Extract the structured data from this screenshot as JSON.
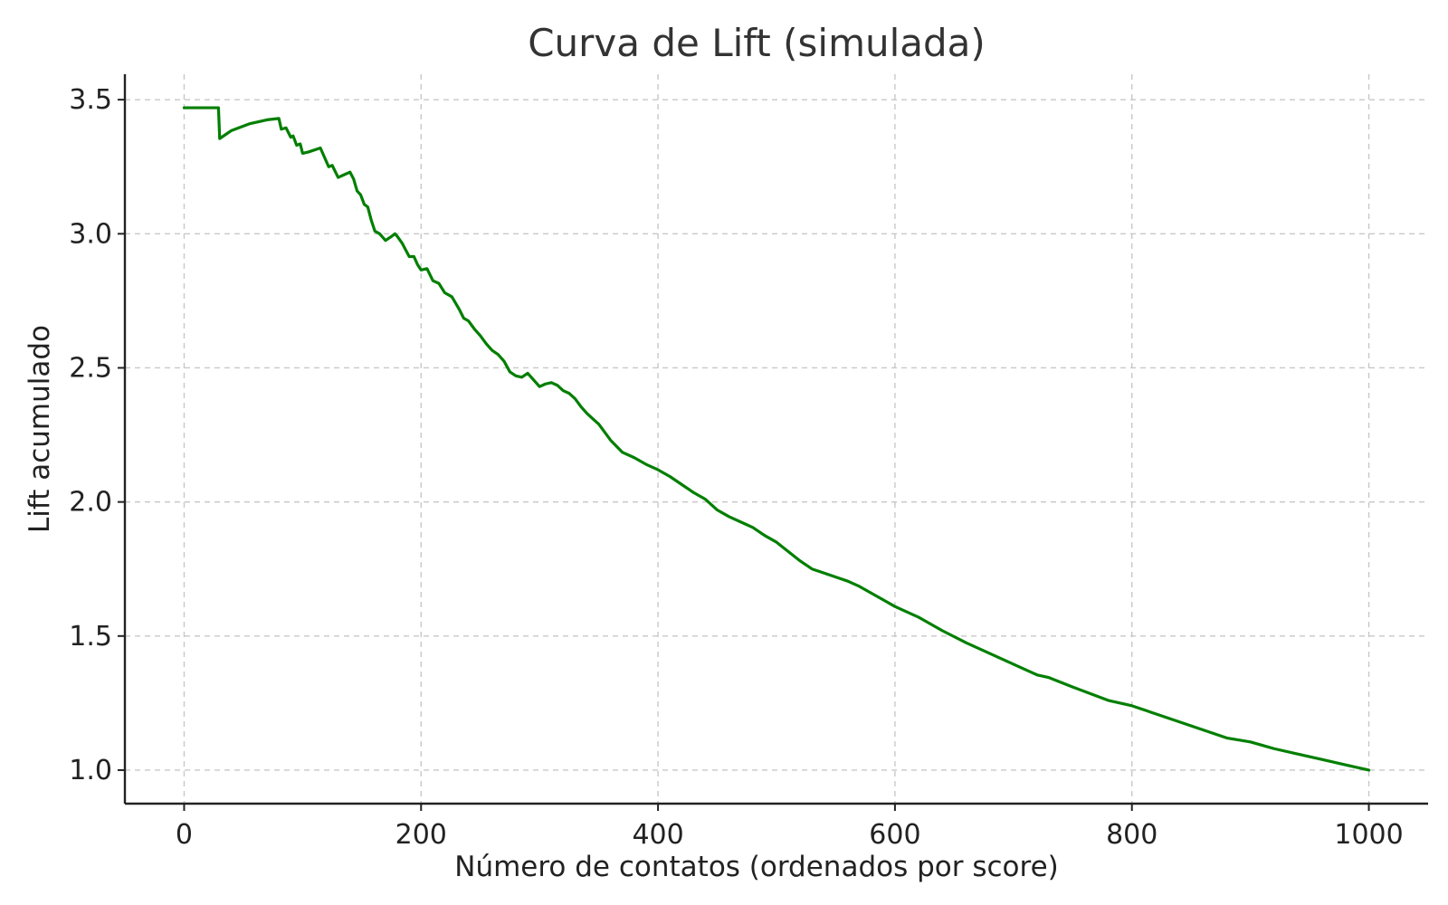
{
  "chart_data": {
    "type": "line",
    "title": "Curva de Lift (simulada)",
    "xlabel": "Número de contatos (ordenados por score)",
    "ylabel": "Lift acumulado",
    "xlim": [
      -50,
      1050
    ],
    "ylim": [
      0.875,
      3.595
    ],
    "xticks": [
      0,
      200,
      400,
      600,
      800,
      1000
    ],
    "yticks": [
      1.0,
      1.5,
      2.0,
      2.5,
      3.0,
      3.5
    ],
    "xtick_labels": [
      "0",
      "200",
      "400",
      "600",
      "800",
      "1000"
    ],
    "ytick_labels": [
      "1.0",
      "1.5",
      "2.0",
      "2.5",
      "3.0",
      "3.5"
    ],
    "grid": true,
    "legend": "none",
    "series": [
      {
        "color": "#007f00",
        "x": [
          0,
          10,
          20,
          29,
          30,
          40,
          55,
          70,
          80,
          82,
          86,
          90,
          92,
          95,
          98,
          100,
          105,
          115,
          118,
          122,
          125,
          130,
          135,
          140,
          143,
          146,
          149,
          152,
          155,
          158,
          161,
          165,
          170,
          175,
          178,
          180,
          184,
          187,
          190,
          194,
          197,
          200,
          205,
          210,
          215,
          220,
          226,
          232,
          236,
          240,
          245,
          250,
          255,
          260,
          265,
          270,
          275,
          280,
          285,
          290,
          295,
          300,
          305,
          310,
          315,
          320,
          325,
          330,
          335,
          340,
          345,
          350,
          360,
          370,
          380,
          390,
          400,
          410,
          420,
          430,
          440,
          450,
          460,
          470,
          480,
          490,
          500,
          510,
          520,
          530,
          540,
          550,
          560,
          570,
          580,
          590,
          600,
          620,
          640,
          660,
          680,
          700,
          720,
          730,
          750,
          780,
          800,
          820,
          840,
          860,
          880,
          900,
          920,
          940,
          960,
          980,
          1000
        ],
        "y": [
          3.47,
          3.47,
          3.47,
          3.47,
          3.355,
          3.385,
          3.41,
          3.425,
          3.43,
          3.39,
          3.395,
          3.36,
          3.365,
          3.33,
          3.335,
          3.3,
          3.305,
          3.32,
          3.29,
          3.25,
          3.255,
          3.21,
          3.22,
          3.23,
          3.205,
          3.16,
          3.145,
          3.11,
          3.1,
          3.05,
          3.01,
          3.0,
          2.975,
          2.99,
          3.0,
          2.99,
          2.965,
          2.94,
          2.915,
          2.915,
          2.885,
          2.865,
          2.87,
          2.825,
          2.815,
          2.78,
          2.765,
          2.72,
          2.685,
          2.675,
          2.645,
          2.62,
          2.59,
          2.565,
          2.55,
          2.525,
          2.485,
          2.47,
          2.465,
          2.48,
          2.455,
          2.43,
          2.44,
          2.445,
          2.435,
          2.415,
          2.405,
          2.385,
          2.355,
          2.33,
          2.31,
          2.29,
          2.23,
          2.185,
          2.165,
          2.14,
          2.12,
          2.095,
          2.065,
          2.035,
          2.01,
          1.97,
          1.945,
          1.925,
          1.905,
          1.875,
          1.85,
          1.815,
          1.78,
          1.75,
          1.735,
          1.72,
          1.705,
          1.685,
          1.66,
          1.635,
          1.61,
          1.57,
          1.52,
          1.475,
          1.435,
          1.395,
          1.355,
          1.345,
          1.31,
          1.26,
          1.24,
          1.21,
          1.18,
          1.15,
          1.12,
          1.105,
          1.08,
          1.06,
          1.04,
          1.02,
          1.0
        ]
      }
    ]
  }
}
